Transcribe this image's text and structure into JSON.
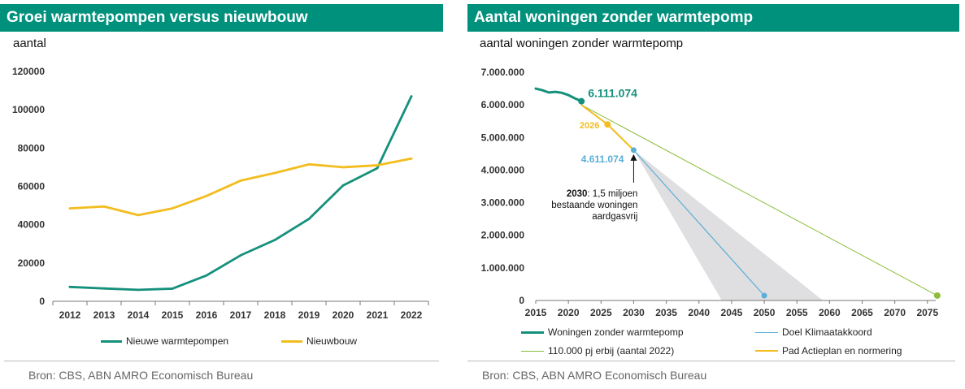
{
  "left": {
    "title": "Groei warmtepompen versus nieuwbouw",
    "subtitle": "aantal",
    "source": "Bron: CBS, ABN AMRO Economisch Bureau",
    "colors": {
      "warmtepompen": "#15907c",
      "nieuwbouw": "#f2bd1f"
    },
    "chart_data": {
      "type": "line",
      "categories": [
        "2012",
        "2013",
        "2014",
        "2015",
        "2016",
        "2017",
        "2018",
        "2019",
        "2020",
        "2021",
        "2022"
      ],
      "series": [
        {
          "name": "Nieuwe warmtepompen",
          "values": [
            7500,
            6700,
            6000,
            6600,
            13500,
            24000,
            32000,
            43000,
            60500,
            69500,
            107000
          ]
        },
        {
          "name": "Nieuwbouw",
          "values": [
            48500,
            49500,
            45000,
            48500,
            55000,
            63000,
            67000,
            71500,
            70000,
            71000,
            74500
          ]
        }
      ],
      "ylim": [
        0,
        120000
      ],
      "yticks": [
        "0",
        "20000",
        "40000",
        "60000",
        "80000",
        "100000",
        "120000"
      ],
      "legend": "bottom",
      "grid": false
    }
  },
  "right": {
    "title": "Aantal woningen zonder warmtepomp",
    "subtitle": "aantal woningen zonder warmtepomp",
    "source": "Bron: CBS, ABN AMRO Economisch Bureau",
    "colors": {
      "woningen": "#15907c",
      "klimaat": "#5aaed6",
      "pj": "#8cbd3c",
      "pad": "#f2bd1f",
      "cone": "#d9d9dc"
    },
    "chart_data": {
      "type": "line",
      "xlim": [
        2015,
        2077
      ],
      "xticks": [
        "2015",
        "2020",
        "2025",
        "2030",
        "2035",
        "2040",
        "2045",
        "2050",
        "2055",
        "2060",
        "2065",
        "2070",
        "2075"
      ],
      "ylim": [
        0,
        7000000
      ],
      "yticks": [
        "0",
        "1.000.000",
        "2.000.000",
        "3.000.000",
        "4.000.000",
        "5.000.000",
        "6.000.000",
        "7.000.000"
      ],
      "series": [
        {
          "name": "Woningen zonder warmtepomp",
          "points": [
            [
              2015,
              6500000
            ],
            [
              2016,
              6450000
            ],
            [
              2017,
              6380000
            ],
            [
              2018,
              6400000
            ],
            [
              2019,
              6370000
            ],
            [
              2020,
              6300000
            ],
            [
              2021,
              6200000
            ],
            [
              2022,
              6111074
            ]
          ]
        },
        {
          "name": "Doel Klimaatakkoord",
          "points": [
            [
              2030,
              4611074
            ],
            [
              2050,
              150000
            ]
          ]
        },
        {
          "name": "110.000 pj erbij (aantal 2022)",
          "points": [
            [
              2022,
              6000000
            ],
            [
              2076.5,
              150000
            ]
          ]
        },
        {
          "name": "Pad Actieplan en normering",
          "points": [
            [
              2022,
              6000000
            ],
            [
              2026,
              5400000
            ],
            [
              2030,
              4611074
            ]
          ]
        }
      ],
      "cone": {
        "apex": [
          2030,
          4611074
        ],
        "base_left": 2043.5,
        "base_right": 2059
      },
      "annotations": {
        "start_value": "6.111.074",
        "target_value": "4.611.074",
        "year_label": "2026",
        "note_bold": "2030",
        "note_line1": ": 1,5 miljoen",
        "note_line2": "bestaande woningen",
        "note_line3": "aardgasvrij"
      },
      "legend": "bottom"
    }
  }
}
